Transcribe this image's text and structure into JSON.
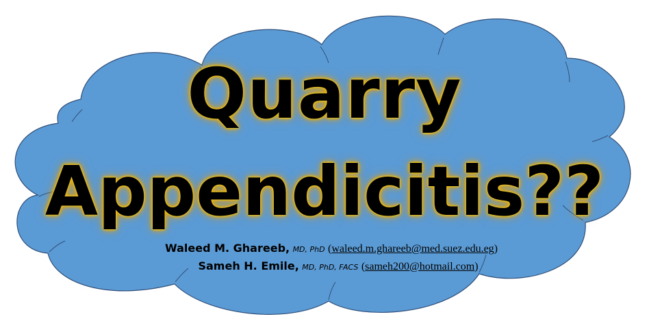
{
  "cloud": {
    "fill": "#5b9bd5",
    "stroke": "#2f4f7a"
  },
  "title": {
    "line1": "Quarry",
    "line2": "Appendicitis??",
    "glow_color": "#f2c400"
  },
  "authors": [
    {
      "name": "Waleed M. Ghareeb",
      "degrees": "MD, PhD",
      "open_paren": "(",
      "email": "waleed.m.ghareeb@med.suez.edu.eg",
      "close_paren": ")"
    },
    {
      "name": "Sameh H. Emile",
      "degrees": "MD, PhD, FACS",
      "open_paren": "(",
      "email": "sameh200@hotmail.com",
      "close_paren": ")"
    }
  ]
}
